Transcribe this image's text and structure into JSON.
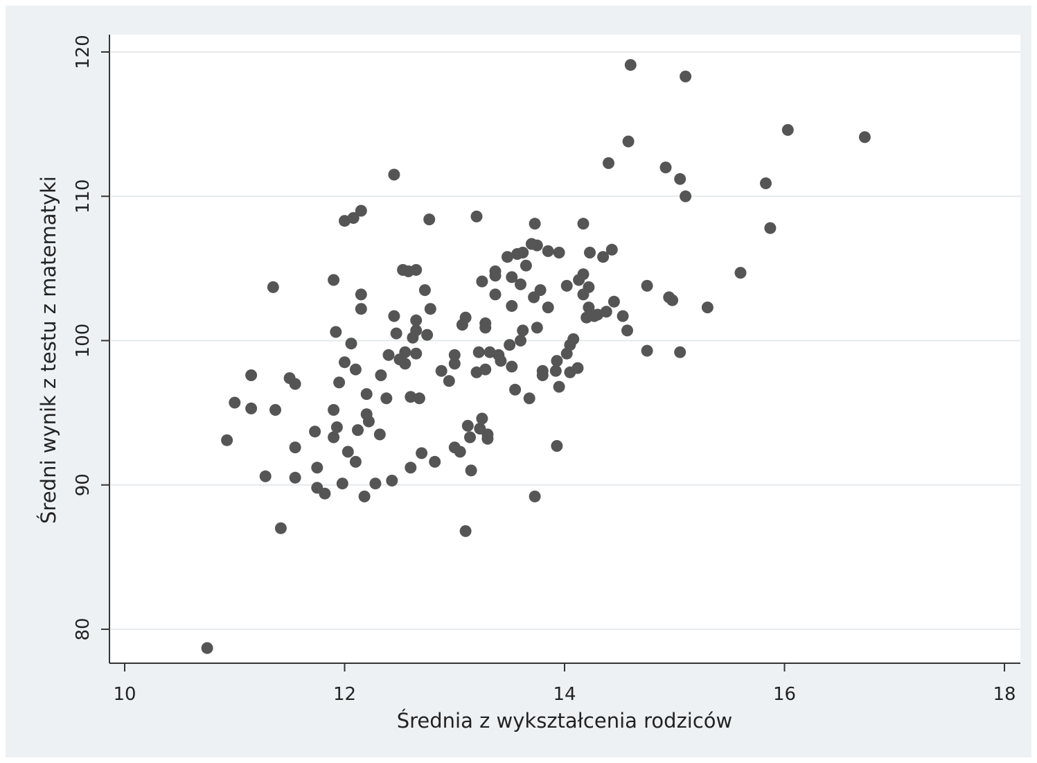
{
  "chart_data": {
    "type": "scatter",
    "xlabel": "Średnia z wykształcenia rodziców",
    "ylabel": "Średni wynik z testu z matematyki",
    "xlim": [
      10,
      18
    ],
    "ylim": [
      80,
      120
    ],
    "xticks": [
      10,
      12,
      14,
      16,
      18
    ],
    "yticks": [
      80,
      90,
      100,
      110,
      120
    ],
    "xtick_labels": [
      "10",
      "12",
      "14",
      "16",
      "18"
    ],
    "ytick_labels": [
      "80",
      "90",
      "100",
      "110",
      "120"
    ],
    "grid": "horizontal",
    "legend": "none",
    "colors": {
      "frame_background": "#eef1f4",
      "plot_background": "#ffffff",
      "gridline": "#e6e9ec",
      "point": "#555555",
      "axis": "#333333"
    },
    "series": [
      {
        "points": [
          [
            10.75,
            78.7
          ],
          [
            10.93,
            93.1
          ],
          [
            11.0,
            95.7
          ],
          [
            11.15,
            97.6
          ],
          [
            11.15,
            95.3
          ],
          [
            11.28,
            90.6
          ],
          [
            11.35,
            103.7
          ],
          [
            11.37,
            95.2
          ],
          [
            11.42,
            87.0
          ],
          [
            11.5,
            97.4
          ],
          [
            11.55,
            97.0
          ],
          [
            11.55,
            92.6
          ],
          [
            11.55,
            90.5
          ],
          [
            11.73,
            93.7
          ],
          [
            11.75,
            91.2
          ],
          [
            11.75,
            89.8
          ],
          [
            11.82,
            89.4
          ],
          [
            11.9,
            104.2
          ],
          [
            11.92,
            100.6
          ],
          [
            11.9,
            95.2
          ],
          [
            11.93,
            94.0
          ],
          [
            11.9,
            93.3
          ],
          [
            11.95,
            97.1
          ],
          [
            11.98,
            90.1
          ],
          [
            12.0,
            108.3
          ],
          [
            12.0,
            98.5
          ],
          [
            12.03,
            92.3
          ],
          [
            12.06,
            99.8
          ],
          [
            12.08,
            108.5
          ],
          [
            12.1,
            98.0
          ],
          [
            12.1,
            91.6
          ],
          [
            12.12,
            93.8
          ],
          [
            12.15,
            109.0
          ],
          [
            12.15,
            102.2
          ],
          [
            12.15,
            103.2
          ],
          [
            12.18,
            89.2
          ],
          [
            12.2,
            96.3
          ],
          [
            12.2,
            94.9
          ],
          [
            12.22,
            94.4
          ],
          [
            12.28,
            90.1
          ],
          [
            12.32,
            93.5
          ],
          [
            12.33,
            97.6
          ],
          [
            12.38,
            96.0
          ],
          [
            12.4,
            99.0
          ],
          [
            12.43,
            90.3
          ],
          [
            12.45,
            111.5
          ],
          [
            12.45,
            101.7
          ],
          [
            12.47,
            100.5
          ],
          [
            12.5,
            98.7
          ],
          [
            12.53,
            104.9
          ],
          [
            12.55,
            99.2
          ],
          [
            12.55,
            98.4
          ],
          [
            12.58,
            104.8
          ],
          [
            12.6,
            96.1
          ],
          [
            12.6,
            91.2
          ],
          [
            12.62,
            100.2
          ],
          [
            12.65,
            101.4
          ],
          [
            12.65,
            100.7
          ],
          [
            12.65,
            99.1
          ],
          [
            12.65,
            104.9
          ],
          [
            12.68,
            96.0
          ],
          [
            12.7,
            92.2
          ],
          [
            12.73,
            103.5
          ],
          [
            12.75,
            100.4
          ],
          [
            12.77,
            108.4
          ],
          [
            12.78,
            102.2
          ],
          [
            12.82,
            91.6
          ],
          [
            12.88,
            97.9
          ],
          [
            12.95,
            97.2
          ],
          [
            13.0,
            99.0
          ],
          [
            13.0,
            98.4
          ],
          [
            13.0,
            92.6
          ],
          [
            13.05,
            92.3
          ],
          [
            13.07,
            101.1
          ],
          [
            13.1,
            101.6
          ],
          [
            13.1,
            86.8
          ],
          [
            13.12,
            94.1
          ],
          [
            13.14,
            93.3
          ],
          [
            13.15,
            91.0
          ],
          [
            13.2,
            108.6
          ],
          [
            13.2,
            97.8
          ],
          [
            13.22,
            99.2
          ],
          [
            13.23,
            93.9
          ],
          [
            13.25,
            104.1
          ],
          [
            13.25,
            94.6
          ],
          [
            13.28,
            101.2
          ],
          [
            13.28,
            100.9
          ],
          [
            13.28,
            98.0
          ],
          [
            13.3,
            93.2
          ],
          [
            13.3,
            93.5
          ],
          [
            13.32,
            99.2
          ],
          [
            13.37,
            104.8
          ],
          [
            13.37,
            104.5
          ],
          [
            13.37,
            103.2
          ],
          [
            13.4,
            99.0
          ],
          [
            13.42,
            98.6
          ],
          [
            13.48,
            105.8
          ],
          [
            13.5,
            99.7
          ],
          [
            13.52,
            104.4
          ],
          [
            13.52,
            102.4
          ],
          [
            13.52,
            98.2
          ],
          [
            13.55,
            96.6
          ],
          [
            13.57,
            106.0
          ],
          [
            13.6,
            103.9
          ],
          [
            13.6,
            100.0
          ],
          [
            13.62,
            106.1
          ],
          [
            13.62,
            100.7
          ],
          [
            13.65,
            105.2
          ],
          [
            13.68,
            96.0
          ],
          [
            13.7,
            106.7
          ],
          [
            13.72,
            103.0
          ],
          [
            13.73,
            108.1
          ],
          [
            13.73,
            89.2
          ],
          [
            13.75,
            106.6
          ],
          [
            13.75,
            100.9
          ],
          [
            13.78,
            103.5
          ],
          [
            13.8,
            97.9
          ],
          [
            13.8,
            97.6
          ],
          [
            13.85,
            106.2
          ],
          [
            13.85,
            102.3
          ],
          [
            13.92,
            97.9
          ],
          [
            13.93,
            98.6
          ],
          [
            13.93,
            92.7
          ],
          [
            13.95,
            106.1
          ],
          [
            13.95,
            96.8
          ],
          [
            14.02,
            103.8
          ],
          [
            14.02,
            99.1
          ],
          [
            14.05,
            99.7
          ],
          [
            14.05,
            97.8
          ],
          [
            14.08,
            100.1
          ],
          [
            14.12,
            98.1
          ],
          [
            14.13,
            104.2
          ],
          [
            14.17,
            108.1
          ],
          [
            14.17,
            104.6
          ],
          [
            14.17,
            103.2
          ],
          [
            14.2,
            101.6
          ],
          [
            14.22,
            103.7
          ],
          [
            14.22,
            102.3
          ],
          [
            14.23,
            106.1
          ],
          [
            14.27,
            101.7
          ],
          [
            14.3,
            101.8
          ],
          [
            14.35,
            105.8
          ],
          [
            14.38,
            102.0
          ],
          [
            14.4,
            112.3
          ],
          [
            14.43,
            106.3
          ],
          [
            14.45,
            102.7
          ],
          [
            14.53,
            101.7
          ],
          [
            14.57,
            100.7
          ],
          [
            14.58,
            113.8
          ],
          [
            14.6,
            119.1
          ],
          [
            14.75,
            103.8
          ],
          [
            14.75,
            99.3
          ],
          [
            14.92,
            112.0
          ],
          [
            14.95,
            103.0
          ],
          [
            14.98,
            102.8
          ],
          [
            15.05,
            111.2
          ],
          [
            15.05,
            99.2
          ],
          [
            15.1,
            118.3
          ],
          [
            15.1,
            110.0
          ],
          [
            15.3,
            102.3
          ],
          [
            15.6,
            104.7
          ],
          [
            15.83,
            110.9
          ],
          [
            15.87,
            107.8
          ],
          [
            16.03,
            114.6
          ],
          [
            16.73,
            114.1
          ]
        ]
      }
    ]
  }
}
